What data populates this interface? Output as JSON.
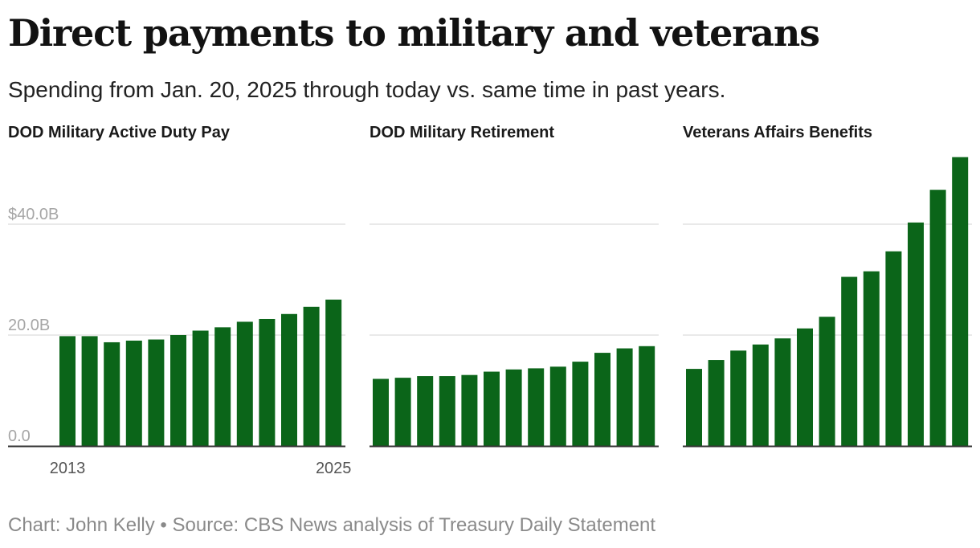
{
  "title": "Direct payments to military and veterans",
  "subtitle": "Spending from Jan. 20, 2025 through today vs. same time in past years.",
  "footer": "Chart: John Kelly • Source: CBS News analysis of Treasury Daily Statement",
  "colors": {
    "bar": "#0b6519",
    "grid": "#e2e2e2",
    "axis": "#333333",
    "tick_label": "#a6a6a6",
    "year_label": "#555555"
  },
  "chart_data": [
    {
      "type": "bar",
      "title": "DOD Military Active Duty Pay",
      "categories": [
        "2013",
        "2014",
        "2015",
        "2016",
        "2017",
        "2018",
        "2019",
        "2020",
        "2021",
        "2022",
        "2023",
        "2024",
        "2025"
      ],
      "values": [
        19.8,
        19.8,
        18.7,
        19.0,
        19.2,
        20.0,
        20.8,
        21.4,
        22.4,
        22.9,
        23.8,
        25.1,
        26.4
      ],
      "ylim": [
        0,
        52
      ],
      "yticks": [
        "0.0",
        "20.0B",
        "$40.0B"
      ],
      "ytick_values": [
        0,
        20,
        40
      ],
      "x_tick_labels": [
        "2013",
        "2025"
      ],
      "grid": true
    },
    {
      "type": "bar",
      "title": "DOD Military Retirement",
      "categories": [
        "2013",
        "2014",
        "2015",
        "2016",
        "2017",
        "2018",
        "2019",
        "2020",
        "2021",
        "2022",
        "2023",
        "2024",
        "2025"
      ],
      "values": [
        12.1,
        12.3,
        12.6,
        12.6,
        12.8,
        13.4,
        13.8,
        14.0,
        14.3,
        15.2,
        16.8,
        17.6,
        18.0
      ],
      "ylim": [
        0,
        52
      ],
      "ytick_values": [
        0,
        20,
        40
      ],
      "grid": true
    },
    {
      "type": "bar",
      "title": "Veterans Affairs Benefits",
      "categories": [
        "2013",
        "2014",
        "2015",
        "2016",
        "2017",
        "2018",
        "2019",
        "2020",
        "2021",
        "2022",
        "2023",
        "2024",
        "2025"
      ],
      "values": [
        13.9,
        15.5,
        17.2,
        18.3,
        19.4,
        21.2,
        23.3,
        30.5,
        31.5,
        35.1,
        40.3,
        46.2,
        52.1
      ],
      "ylim": [
        0,
        52
      ],
      "ytick_values": [
        0,
        20,
        40
      ],
      "grid": true
    }
  ]
}
